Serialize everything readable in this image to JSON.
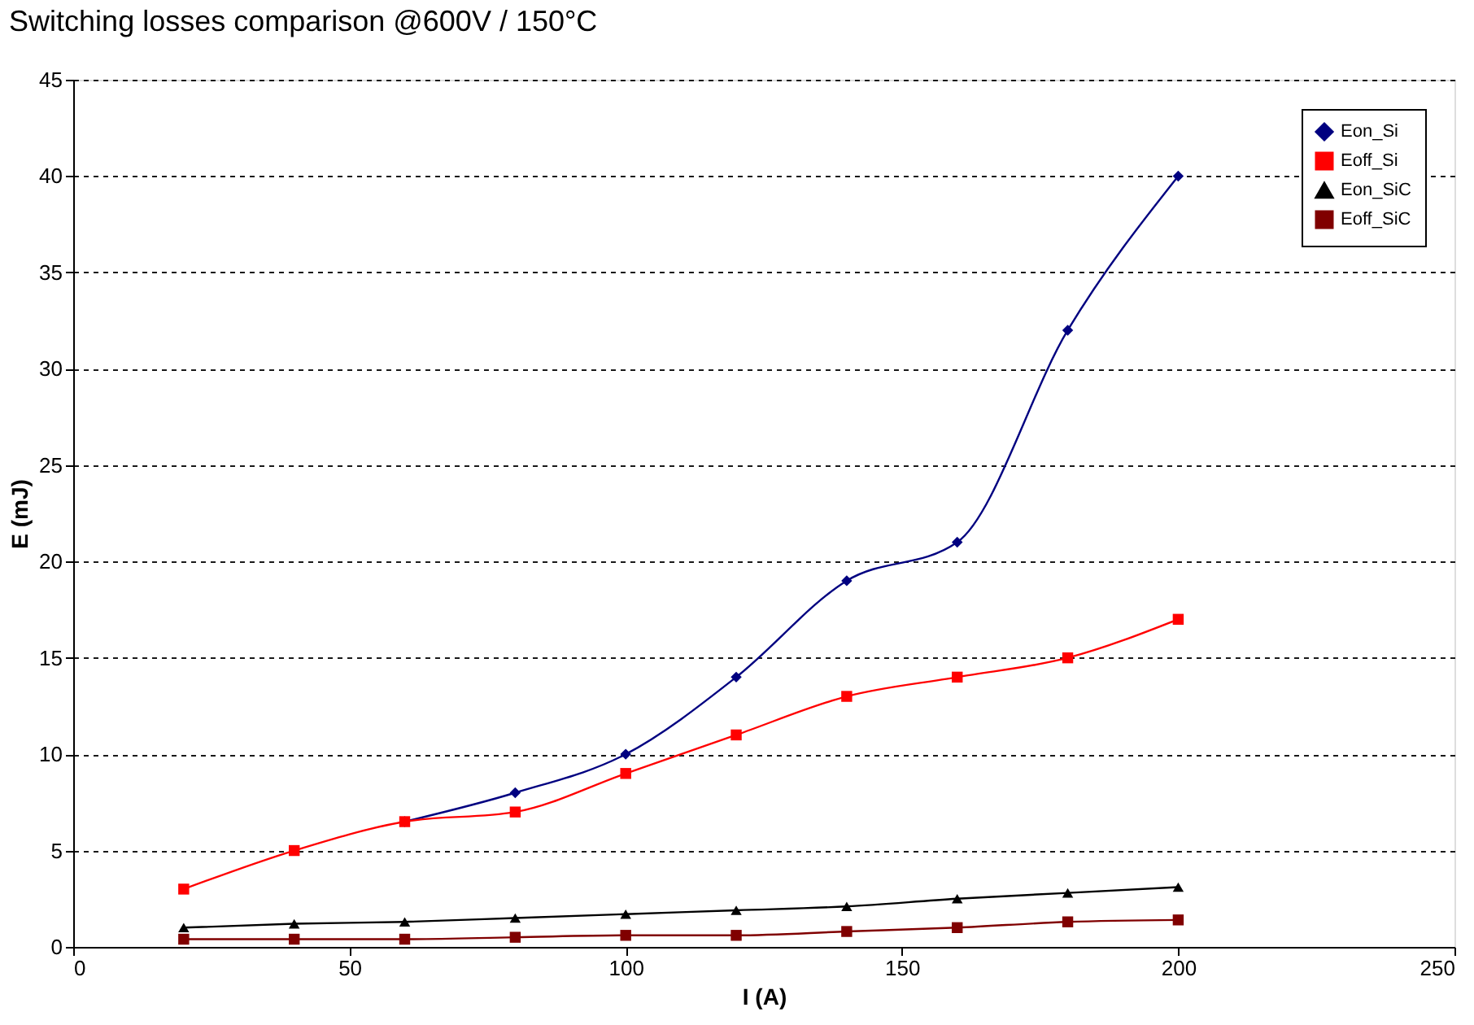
{
  "chart_data": {
    "type": "line",
    "title": "Switching losses comparison @600V / 150°C",
    "xlabel": "I (A)",
    "ylabel": "E (mJ)",
    "x": [
      20,
      40,
      60,
      80,
      100,
      120,
      140,
      160,
      180,
      200
    ],
    "series": [
      {
        "name": "Eon_Si",
        "color": "#000080",
        "marker": "diamond",
        "values": [
          null,
          null,
          6.5,
          8,
          10,
          14,
          19,
          21,
          32,
          40
        ]
      },
      {
        "name": "Eoff_Si",
        "color": "#ff0000",
        "marker": "square",
        "values": [
          3,
          5,
          6.5,
          7,
          9,
          11,
          13,
          14,
          15,
          17
        ]
      },
      {
        "name": "Eon_SiC",
        "color": "#000000",
        "marker": "triangle",
        "values": [
          1,
          1.2,
          1.3,
          1.5,
          1.7,
          1.9,
          2.1,
          2.5,
          2.8,
          3.1
        ]
      },
      {
        "name": "Eoff_SiC",
        "color": "#800000",
        "marker": "square",
        "values": [
          0.4,
          0.4,
          0.4,
          0.5,
          0.6,
          0.6,
          0.8,
          1.0,
          1.3,
          1.4
        ]
      }
    ],
    "xlim": [
      0,
      250
    ],
    "xticks": [
      0,
      50,
      100,
      150,
      200,
      250
    ],
    "ylim": [
      0,
      45
    ],
    "yticks": [
      0,
      5,
      10,
      15,
      20,
      25,
      30,
      35,
      40,
      45
    ],
    "grid": "y",
    "legend": "top right",
    "line_style": "solid"
  }
}
